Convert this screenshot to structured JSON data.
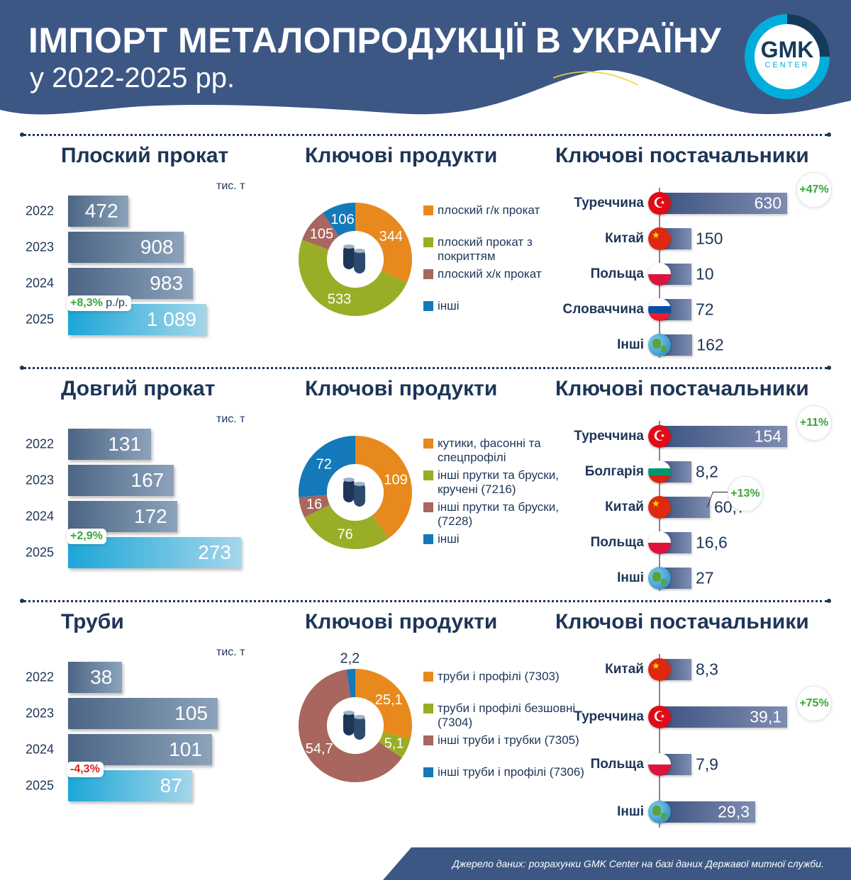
{
  "header": {
    "title": "ІМПОРТ МЕТАЛОПРОДУКЦІЇ В УКРАЇНУ",
    "subtitle": "у 2022-2025 рр.",
    "logo": {
      "text": "GMK",
      "subtext": "CENTER"
    }
  },
  "colors": {
    "header": "#3d5785",
    "accent": "#00aedb",
    "orange": "#e8891e",
    "green": "#9aad27",
    "brown": "#a8665e",
    "blue": "#1479b9"
  },
  "footer": {
    "source": "Джерело даних: розрахунки GMK Center на базі даних Державої митної служби."
  },
  "chart_data": [
    {
      "type": "bar",
      "orientation": "vertical-rows",
      "title": "Плоский прокат",
      "unit": "тис. т",
      "categories": [
        "2022",
        "2023",
        "2024",
        "2025"
      ],
      "values": [
        472,
        908,
        983,
        1089
      ],
      "value_labels": [
        "472",
        "908",
        "983",
        "1 089"
      ],
      "change": {
        "value": "+8,3%",
        "suffix": "р./р.",
        "positive": true
      }
    },
    {
      "type": "pie",
      "title": "Ключові продукти",
      "labels": [
        "плоский г/к прокат",
        "плоский прокат з покриттям",
        "плоский х/к прокат",
        "інші"
      ],
      "values": [
        344,
        533,
        105,
        106
      ],
      "value_labels": [
        "344",
        "533",
        "105",
        "106"
      ],
      "colors": [
        "#e8891e",
        "#9aad27",
        "#a8665e",
        "#1479b9"
      ],
      "icon": "steel-coil-icon"
    },
    {
      "type": "bar",
      "orientation": "horizontal",
      "title": "Ключові постачальники",
      "categories": [
        "Туреччина",
        "Китай",
        "Польща",
        "Словаччина",
        "Інші"
      ],
      "values": [
        630,
        150,
        10,
        72,
        162
      ],
      "value_labels": [
        "630",
        "150",
        "10",
        "72",
        "162"
      ],
      "flags": [
        "turkey",
        "china",
        "poland",
        "slovakia",
        "globe"
      ],
      "badges": [
        "+47%",
        null,
        null,
        null,
        null
      ]
    },
    {
      "type": "bar",
      "orientation": "vertical-rows",
      "title": "Довгий прокат",
      "unit": "тис. т",
      "categories": [
        "2022",
        "2023",
        "2024",
        "2025"
      ],
      "values": [
        131,
        167,
        172,
        273
      ],
      "value_labels": [
        "131",
        "167",
        "172",
        "273"
      ],
      "change": {
        "value": "+2,9%",
        "suffix": "",
        "positive": true
      }
    },
    {
      "type": "pie",
      "title": "Ключові продукти",
      "labels": [
        "кутики, фасонні та спецпрофілі",
        "інші прутки та бруски, кручені (7216)",
        "інші прутки та бруски, (7228)",
        "інші"
      ],
      "values": [
        109,
        76,
        16,
        72
      ],
      "value_labels": [
        "109",
        "76",
        "16",
        "72"
      ],
      "colors": [
        "#e8891e",
        "#9aad27",
        "#a8665e",
        "#1479b9"
      ],
      "icon": "steel-bars-icon"
    },
    {
      "type": "bar",
      "orientation": "horizontal",
      "title": "Ключові постачальники",
      "categories": [
        "Туреччина",
        "Болгарія",
        "Китай",
        "Польща",
        "Інші"
      ],
      "values": [
        154,
        8.2,
        60.7,
        16.6,
        27
      ],
      "value_labels": [
        "154",
        "8,2",
        "60,7",
        "16,6",
        "27"
      ],
      "flags": [
        "turkey",
        "bulgaria",
        "china",
        "poland",
        "globe"
      ],
      "badges": [
        "+11%",
        null,
        "+13%",
        null,
        null
      ]
    },
    {
      "type": "bar",
      "orientation": "vertical-rows",
      "title": "Труби",
      "unit": "тис. т",
      "categories": [
        "2022",
        "2023",
        "2024",
        "2025"
      ],
      "values": [
        38,
        105,
        101,
        87
      ],
      "value_labels": [
        "38",
        "105",
        "101",
        "87"
      ],
      "change": {
        "value": "-4,3%",
        "suffix": "",
        "positive": false
      }
    },
    {
      "type": "pie",
      "title": "Ключові продукти",
      "labels": [
        "труби і профілі (7303)",
        "труби і профілі безшовні (7304)",
        "інші труби і трубки (7305)",
        "інші труби і профілі (7306)"
      ],
      "values": [
        25.1,
        5.1,
        54.7,
        2.2
      ],
      "value_labels": [
        "25,1",
        "5,1",
        "54,7",
        "2,2"
      ],
      "colors": [
        "#e8891e",
        "#9aad27",
        "#a8665e",
        "#1479b9"
      ],
      "icon": "pipes-icon"
    },
    {
      "type": "bar",
      "orientation": "horizontal",
      "title": "Ключові постачальники",
      "categories": [
        "Китай",
        "Туреччина",
        "Польща",
        "Інші"
      ],
      "values": [
        8.3,
        39.1,
        7.9,
        29.3
      ],
      "value_labels": [
        "8,3",
        "39,1",
        "7,9",
        "29,3"
      ],
      "flags": [
        "china",
        "turkey",
        "poland",
        "globe"
      ],
      "badges": [
        null,
        "+75%",
        null,
        null
      ]
    }
  ]
}
